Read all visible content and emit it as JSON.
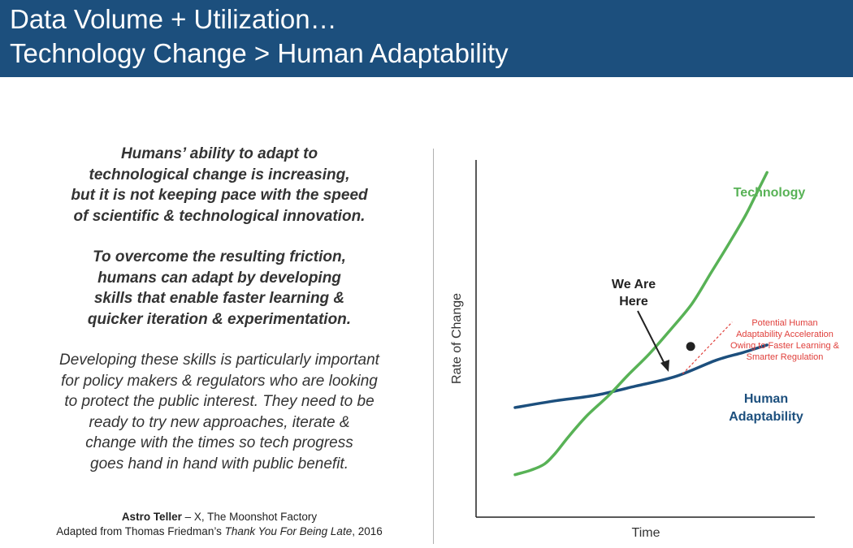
{
  "header": {
    "title_line1": "Data Volume + Utilization…",
    "title_line2": "Technology Change > Human Adaptability",
    "bg_color": "#1c4f7d"
  },
  "body_text": {
    "para1": [
      "Humans’ ability to adapt to",
      "technological change is increasing,",
      "but it is not keeping pace with the speed",
      "of scientific & technological innovation."
    ],
    "para2": [
      "To overcome the resulting friction,",
      "humans can adapt by developing",
      "skills that enable faster learning &",
      "quicker iteration & experimentation."
    ],
    "para3": [
      "Developing these skills is particularly important",
      "for policy makers & regulators who are looking",
      "to protect the public interest. They need to be",
      "ready to try new approaches, iterate &",
      "change with the times so tech progress",
      "goes hand in hand with public benefit."
    ]
  },
  "attribution": {
    "author": "Astro Teller",
    "author_rest": " – X, The Moonshot Factory",
    "source_prefix": "Adapted from Thomas Friedman’s ",
    "source_title": "Thank You For Being Late",
    "source_suffix": ", 2016"
  },
  "chart_data": {
    "type": "line",
    "title": "",
    "xlabel": "Time",
    "ylabel": "Rate of Change",
    "xlim": [
      0,
      10
    ],
    "ylim": [
      0,
      10
    ],
    "grid": false,
    "series": [
      {
        "name": "Technology",
        "color": "#58b256",
        "x": [
          0,
          0.6,
          1.1,
          1.5,
          2.0,
          2.7,
          3.5,
          4.2,
          5.0,
          5.8,
          6.6,
          7.3,
          8.0,
          8.6,
          9.0,
          9.4
        ],
        "y": [
          0.7,
          0.85,
          1.05,
          1.4,
          1.95,
          2.65,
          3.3,
          3.95,
          4.65,
          5.45,
          6.3,
          7.3,
          8.3,
          9.2,
          9.9,
          10.6
        ]
      },
      {
        "name": "Human Adaptability",
        "color": "#1c4f7d",
        "x": [
          0,
          1.5,
          3.0,
          4.5,
          6.0,
          7.5,
          8.5,
          9.4
        ],
        "y": [
          2.9,
          3.12,
          3.3,
          3.6,
          3.92,
          4.45,
          4.7,
          4.95
        ]
      },
      {
        "name": "Potential Human Adaptability Acceleration",
        "color": "#e0403c",
        "style": "dashed",
        "x": [
          6.25,
          8.1
        ],
        "y": [
          4.0,
          5.7
        ]
      }
    ],
    "annotations": {
      "technology_label": "Technology",
      "human_label_line1": "Human",
      "human_label_line2": "Adaptability",
      "we_are_here_line1": "We Are",
      "we_are_here_line2": "Here",
      "we_are_here_point": {
        "x": 6.55,
        "y": 4.9
      },
      "acceleration_lines": [
        "Potential Human",
        "Adaptability Acceleration",
        "Owing to Faster Learning &",
        "Smarter Regulation"
      ]
    }
  }
}
